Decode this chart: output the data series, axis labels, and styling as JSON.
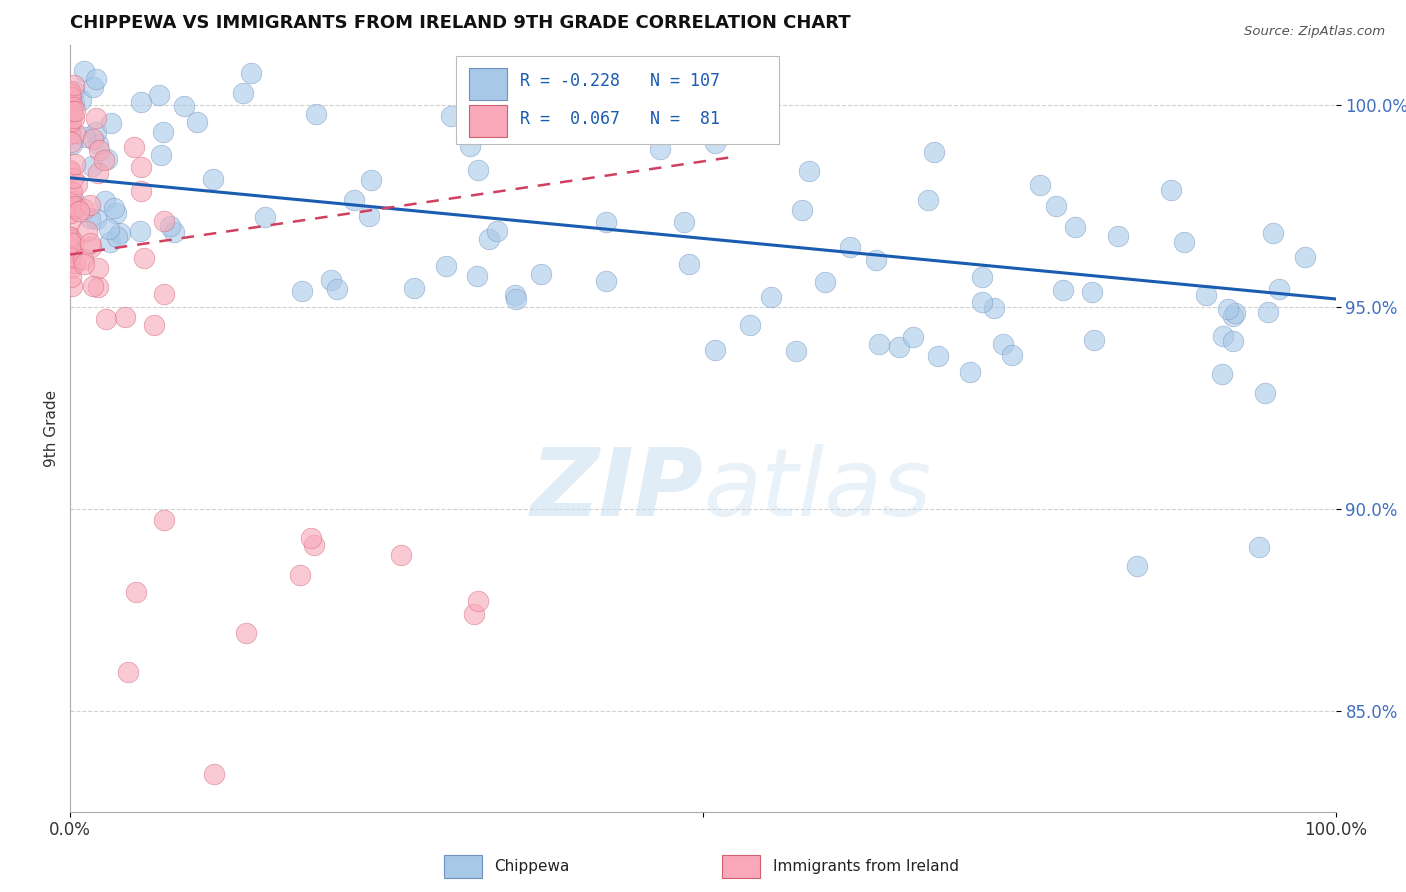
{
  "title": "CHIPPEWA VS IMMIGRANTS FROM IRELAND 9TH GRADE CORRELATION CHART",
  "source_text": "Source: ZipAtlas.com",
  "ylabel": "9th Grade",
  "R_blue": -0.228,
  "N_blue": 107,
  "R_pink": 0.067,
  "N_pink": 81,
  "blue_scatter_color": "#a8c8e8",
  "blue_edge_color": "#7090c0",
  "pink_scatter_color": "#f8a8b8",
  "pink_edge_color": "#d06070",
  "blue_line_color": "#1a5cb0",
  "pink_line_color": "#d04060",
  "background_color": "#ffffff",
  "watermark_color": "#c8ddf0",
  "grid_color": "#cccccc",
  "ytick_color": "#4070c0",
  "xmin": 0.0,
  "xmax": 1.0,
  "ymin": 0.825,
  "ymax": 1.015,
  "ytick_vals": [
    0.85,
    0.9,
    0.95,
    1.0
  ],
  "blue_line_y_start": 0.982,
  "blue_line_y_end": 0.952,
  "pink_line_x_start": 0.0,
  "pink_line_x_end": 0.52,
  "pink_line_y_start": 0.963,
  "pink_line_y_end": 0.987,
  "legend_R_blue": "R = -0.228",
  "legend_N_blue": "N = 107",
  "legend_R_pink": "R =  0.067",
  "legend_N_pink": "N =  81",
  "title_fontsize": 13,
  "tick_fontsize": 12
}
